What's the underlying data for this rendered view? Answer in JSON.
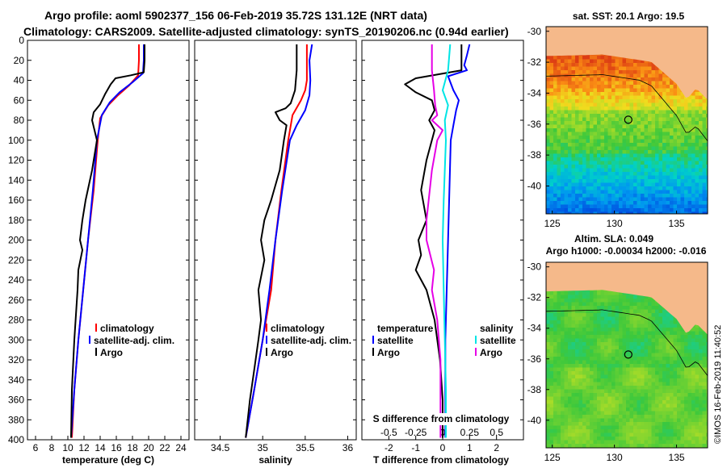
{
  "title": {
    "line1": "Argo profile: aoml 5902377_156 06-Feb-2019 35.72S 131.12E (NRT data)",
    "line2": "Climatology: CARS2009. Satellite-adjusted climatology: synTS_20190206.nc (0.94d earlier)"
  },
  "colors": {
    "climatology": "#ff0000",
    "satellite": "#0000ff",
    "argo": "#000000",
    "sal_satellite": "#00e5e5",
    "sal_diff": "#e600e6",
    "land": "#f5b98a"
  },
  "chart_data": [
    {
      "type": "line",
      "id": "temperature",
      "xlabel": "temperature (deg C)",
      "xlim": [
        5,
        25
      ],
      "xticks": [
        6,
        8,
        10,
        12,
        14,
        16,
        18,
        20,
        22,
        24
      ],
      "ylim": [
        0,
        400
      ],
      "yticks": [
        0,
        20,
        40,
        60,
        80,
        100,
        120,
        140,
        160,
        180,
        200,
        220,
        240,
        260,
        280,
        300,
        320,
        340,
        360,
        380,
        400
      ],
      "legend": [
        "climatology",
        "satellite-adj. clim.",
        "Argo"
      ],
      "series": [
        {
          "name": "climatology",
          "color": "red",
          "points": [
            [
              18.8,
              4
            ],
            [
              18.8,
              20
            ],
            [
              18.7,
              35
            ],
            [
              17.6,
              45
            ],
            [
              16.2,
              55
            ],
            [
              15.0,
              65
            ],
            [
              14.0,
              78
            ],
            [
              13.7,
              100
            ],
            [
              13.2,
              150
            ],
            [
              12.5,
              200
            ],
            [
              11.9,
              250
            ],
            [
              11.3,
              300
            ],
            [
              10.8,
              350
            ],
            [
              10.5,
              398
            ]
          ]
        },
        {
          "name": "satellite-adj. clim.",
          "color": "blue",
          "points": [
            [
              19.4,
              4
            ],
            [
              19.4,
              20
            ],
            [
              19.3,
              33
            ],
            [
              18.0,
              42
            ],
            [
              16.4,
              52
            ],
            [
              15.2,
              62
            ],
            [
              14.2,
              75
            ],
            [
              13.6,
              100
            ],
            [
              13.1,
              150
            ],
            [
              12.5,
              200
            ],
            [
              11.9,
              250
            ],
            [
              11.3,
              300
            ],
            [
              10.8,
              350
            ],
            [
              10.4,
              398
            ]
          ]
        },
        {
          "name": "Argo",
          "color": "black",
          "points": [
            [
              19.5,
              4
            ],
            [
              19.5,
              20
            ],
            [
              19.4,
              32
            ],
            [
              17.8,
              35
            ],
            [
              15.9,
              38
            ],
            [
              15.3,
              44
            ],
            [
              14.6,
              54
            ],
            [
              14.0,
              64
            ],
            [
              13.2,
              72
            ],
            [
              13.0,
              80
            ],
            [
              13.3,
              90
            ],
            [
              13.6,
              100
            ],
            [
              13.0,
              130
            ],
            [
              12.2,
              160
            ],
            [
              11.8,
              180
            ],
            [
              11.5,
              200
            ],
            [
              11.8,
              210
            ],
            [
              11.3,
              230
            ],
            [
              11.2,
              250
            ],
            [
              10.8,
              300
            ],
            [
              10.5,
              350
            ],
            [
              10.4,
              398
            ]
          ]
        }
      ]
    },
    {
      "type": "line",
      "id": "salinity",
      "xlabel": "salinity",
      "xlim": [
        34.2,
        36.1
      ],
      "xticks": [
        34.5,
        35,
        35.5,
        36
      ],
      "ylim": [
        0,
        400
      ],
      "legend": [
        "climatology",
        "satellite-adj. clim.",
        "Argo"
      ],
      "series": [
        {
          "name": "climatology",
          "color": "red",
          "points": [
            [
              35.52,
              4
            ],
            [
              35.52,
              20
            ],
            [
              35.52,
              40
            ],
            [
              35.5,
              50
            ],
            [
              35.45,
              60
            ],
            [
              35.35,
              75
            ],
            [
              35.3,
              100
            ],
            [
              35.22,
              150
            ],
            [
              35.15,
              200
            ],
            [
              35.1,
              250
            ],
            [
              35.0,
              300
            ],
            [
              34.9,
              350
            ],
            [
              34.8,
              398
            ]
          ]
        },
        {
          "name": "satellite-adj. clim.",
          "color": "blue",
          "points": [
            [
              35.58,
              4
            ],
            [
              35.55,
              20
            ],
            [
              35.56,
              40
            ],
            [
              35.55,
              55
            ],
            [
              35.5,
              70
            ],
            [
              35.4,
              85
            ],
            [
              35.32,
              100
            ],
            [
              35.23,
              150
            ],
            [
              35.15,
              200
            ],
            [
              35.08,
              250
            ],
            [
              35.0,
              300
            ],
            [
              34.9,
              350
            ],
            [
              34.8,
              398
            ]
          ]
        },
        {
          "name": "Argo",
          "color": "black",
          "points": [
            [
              35.4,
              4
            ],
            [
              35.4,
              15
            ],
            [
              35.4,
              30
            ],
            [
              35.38,
              50
            ],
            [
              35.33,
              63
            ],
            [
              35.27,
              68
            ],
            [
              35.15,
              72
            ],
            [
              35.2,
              80
            ],
            [
              35.28,
              85
            ],
            [
              35.25,
              100
            ],
            [
              35.2,
              130
            ],
            [
              35.1,
              160
            ],
            [
              35.02,
              180
            ],
            [
              34.98,
              200
            ],
            [
              35.02,
              220
            ],
            [
              34.95,
              250
            ],
            [
              34.98,
              280
            ],
            [
              34.95,
              300
            ],
            [
              34.9,
              330
            ],
            [
              34.85,
              360
            ],
            [
              34.8,
              398
            ]
          ]
        }
      ]
    },
    {
      "type": "line",
      "id": "differences",
      "xlabel": "T difference from climatology",
      "xlabel2": "S difference from climatology",
      "xlim": [
        -3,
        3
      ],
      "xticks": [
        -2,
        -1,
        0,
        1,
        2
      ],
      "xticks_s": [
        "-0.5",
        "-0.25",
        "0",
        "0.25",
        "0.5"
      ],
      "ylim": [
        0,
        400
      ],
      "legend_temperature": {
        "heading": "temperature",
        "items": [
          "satellite",
          "Argo"
        ]
      },
      "legend_salinity": {
        "heading": "salinity",
        "items": [
          "satellite",
          "Argo"
        ]
      },
      "series": [
        {
          "name": "T satellite",
          "color": "blue",
          "points": [
            [
              1.0,
              4
            ],
            [
              0.9,
              15
            ],
            [
              0.8,
              25
            ],
            [
              0.9,
              30
            ],
            [
              0.2,
              36
            ],
            [
              0.4,
              50
            ],
            [
              0.6,
              60
            ],
            [
              0.5,
              70
            ],
            [
              0.4,
              85
            ],
            [
              0.3,
              100
            ],
            [
              0.2,
              200
            ],
            [
              0.1,
              300
            ],
            [
              0.1,
              398
            ]
          ]
        },
        {
          "name": "T Argo",
          "color": "black",
          "points": [
            [
              0.7,
              4
            ],
            [
              0.7,
              15
            ],
            [
              0.7,
              30
            ],
            [
              -1.0,
              38
            ],
            [
              -1.4,
              44
            ],
            [
              -1.0,
              52
            ],
            [
              -0.4,
              60
            ],
            [
              -0.3,
              70
            ],
            [
              -0.5,
              80
            ],
            [
              -0.3,
              90
            ],
            [
              -0.6,
              120
            ],
            [
              -0.8,
              150
            ],
            [
              -0.6,
              180
            ],
            [
              -0.9,
              200
            ],
            [
              -0.8,
              215
            ],
            [
              -1.0,
              230
            ],
            [
              -0.6,
              250
            ],
            [
              -0.3,
              280
            ],
            [
              -0.1,
              320
            ],
            [
              0.0,
              360
            ],
            [
              0.0,
              398
            ]
          ]
        },
        {
          "name": "S satellite",
          "color": "cyan",
          "points": [
            [
              0.07,
              4
            ],
            [
              0.05,
              30
            ],
            [
              0.0,
              50
            ],
            [
              0.05,
              65
            ],
            [
              0.02,
              80
            ],
            [
              0.03,
              100
            ],
            [
              0.01,
              160
            ],
            [
              0.0,
              200
            ],
            [
              0.01,
              250
            ],
            [
              0.02,
              300
            ],
            [
              0.03,
              350
            ],
            [
              0.03,
              398
            ]
          ]
        },
        {
          "name": "S Argo",
          "color": "magenta",
          "points": [
            [
              -0.1,
              4
            ],
            [
              -0.1,
              30
            ],
            [
              -0.08,
              50
            ],
            [
              -0.07,
              65
            ],
            [
              -0.05,
              75
            ],
            [
              -0.1,
              80
            ],
            [
              0.0,
              90
            ],
            [
              -0.05,
              100
            ],
            [
              -0.1,
              130
            ],
            [
              -0.15,
              180
            ],
            [
              -0.15,
              200
            ],
            [
              -0.08,
              230
            ],
            [
              -0.1,
              250
            ],
            [
              -0.05,
              280
            ],
            [
              -0.02,
              320
            ],
            [
              -0.02,
              360
            ],
            [
              -0.02,
              398
            ]
          ]
        }
      ]
    },
    {
      "type": "heatmap",
      "id": "sst-map",
      "title": "sat. SST: 20.1  Argo: 19.5",
      "xticks": [
        125,
        130,
        135
      ],
      "yticks": [
        -30,
        -32,
        -34,
        -36,
        -38,
        -40
      ],
      "xlim": [
        124.5,
        137.5
      ],
      "ylim": [
        -41.8,
        -29.7
      ],
      "float_position": [
        131.12,
        -35.72
      ]
    },
    {
      "type": "heatmap",
      "id": "sla-map",
      "title": "Altim. SLA: 0.049",
      "subtitle": "Argo h1000: -0.00034 h2000: -0.016",
      "xticks": [
        125,
        130,
        135
      ],
      "yticks": [
        -30,
        -32,
        -34,
        -36,
        -38,
        -40
      ],
      "xlim": [
        124.5,
        137.5
      ],
      "ylim": [
        -41.8,
        -29.7
      ],
      "float_position": [
        131.12,
        -35.72
      ]
    }
  ],
  "stamp": "©IMOS 16-Feb-2019 11:40:52"
}
